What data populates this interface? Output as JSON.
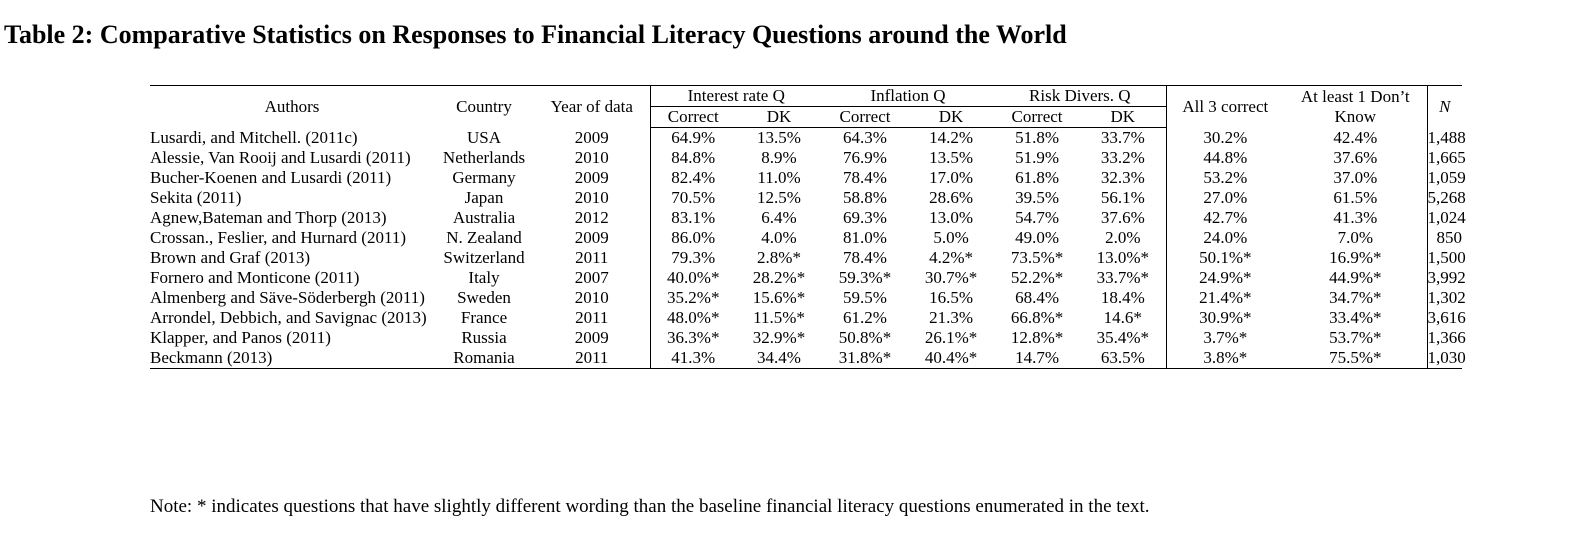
{
  "title": "Table 2: Comparative Statistics on Responses to Financial Literacy Questions around the World",
  "headers": {
    "authors": "Authors",
    "country": "Country",
    "year": "Year of data",
    "interest_group": "Interest rate Q",
    "inflation_group": "Inflation Q",
    "risk_group": "Risk Divers. Q",
    "all3": "All 3 correct",
    "atleast1_line1": "At least 1 Don’t",
    "atleast1_line2": "Know",
    "n": "N",
    "correct": "Correct",
    "dk": "DK"
  },
  "rows": [
    {
      "author": "Lusardi, and Mitchell. (2011c)",
      "country": "USA",
      "year": "2009",
      "ir_c": "64.9%",
      "ir_dk": "13.5%",
      "inf_c": "64.3%",
      "inf_dk": "14.2%",
      "risk_c": "51.8%",
      "risk_dk": "33.7%",
      "all3": "30.2%",
      "dk1": "42.4%",
      "n": "1,488"
    },
    {
      "author": "Alessie, Van Rooij and Lusardi (2011)",
      "country": "Netherlands",
      "year": "2010",
      "ir_c": "84.8%",
      "ir_dk": "8.9%",
      "inf_c": "76.9%",
      "inf_dk": "13.5%",
      "risk_c": "51.9%",
      "risk_dk": "33.2%",
      "all3": "44.8%",
      "dk1": "37.6%",
      "n": "1,665"
    },
    {
      "author": "Bucher-Koenen and Lusardi (2011)",
      "country": "Germany",
      "year": "2009",
      "ir_c": "82.4%",
      "ir_dk": "11.0%",
      "inf_c": "78.4%",
      "inf_dk": "17.0%",
      "risk_c": "61.8%",
      "risk_dk": "32.3%",
      "all3": "53.2%",
      "dk1": "37.0%",
      "n": "1,059"
    },
    {
      "author": "Sekita (2011)",
      "country": "Japan",
      "year": "2010",
      "ir_c": "70.5%",
      "ir_dk": "12.5%",
      "inf_c": "58.8%",
      "inf_dk": "28.6%",
      "risk_c": "39.5%",
      "risk_dk": "56.1%",
      "all3": "27.0%",
      "dk1": "61.5%",
      "n": "5,268"
    },
    {
      "author": "Agnew,Bateman and Thorp (2013)",
      "country": "Australia",
      "year": "2012",
      "ir_c": "83.1%",
      "ir_dk": "6.4%",
      "inf_c": "69.3%",
      "inf_dk": "13.0%",
      "risk_c": "54.7%",
      "risk_dk": "37.6%",
      "all3": "42.7%",
      "dk1": "41.3%",
      "n": "1,024"
    },
    {
      "author": "Crossan.,  Feslier, and Hurnard (2011)",
      "country": "N. Zealand",
      "year": "2009",
      "ir_c": "86.0%",
      "ir_dk": "4.0%",
      "inf_c": "81.0%",
      "inf_dk": "5.0%",
      "risk_c": "49.0%",
      "risk_dk": "2.0%",
      "all3": "24.0%",
      "dk1": "7.0%",
      "n": "850"
    },
    {
      "author": "Brown and Graf (2013)",
      "country": "Switzerland",
      "year": "2011",
      "ir_c": "79.3%",
      "ir_dk": "2.8%*",
      "inf_c": "78.4%",
      "inf_dk": "4.2%*",
      "risk_c": "73.5%*",
      "risk_dk": "13.0%*",
      "all3": "50.1%*",
      "dk1": "16.9%*",
      "n": "1,500"
    },
    {
      "author": "Fornero and Monticone (2011)",
      "country": "Italy",
      "year": "2007",
      "ir_c": "40.0%*",
      "ir_dk": "28.2%*",
      "inf_c": "59.3%*",
      "inf_dk": "30.7%*",
      "risk_c": "52.2%*",
      "risk_dk": "33.7%*",
      "all3": "24.9%*",
      "dk1": "44.9%*",
      "n": "3,992"
    },
    {
      "author": "Almenberg and Säve-Söderbergh (2011)",
      "country": "Sweden",
      "year": "2010",
      "ir_c": "35.2%*",
      "ir_dk": "15.6%*",
      "inf_c": "59.5%",
      "inf_dk": "16.5%",
      "risk_c": "68.4%",
      "risk_dk": "18.4%",
      "all3": "21.4%*",
      "dk1": "34.7%*",
      "n": "1,302"
    },
    {
      "author": "Arrondel, Debbich, and Savignac (2013)",
      "country": "France",
      "year": "2011",
      "ir_c": "48.0%*",
      "ir_dk": "11.5%*",
      "inf_c": "61.2%",
      "inf_dk": "21.3%",
      "risk_c": "66.8%*",
      "risk_dk": "14.6*",
      "all3": "30.9%*",
      "dk1": "33.4%*",
      "n": "3,616"
    },
    {
      "author": "Klapper, and Panos (2011)",
      "country": "Russia",
      "year": "2009",
      "ir_c": "36.3%*",
      "ir_dk": "32.9%*",
      "inf_c": "50.8%*",
      "inf_dk": "26.1%*",
      "risk_c": "12.8%*",
      "risk_dk": "35.4%*",
      "all3": "3.7%*",
      "dk1": "53.7%*",
      "n": "1,366"
    },
    {
      "author": "Beckmann (2013)",
      "country": "Romania",
      "year": "2011",
      "ir_c": "41.3%",
      "ir_dk": "34.4%",
      "inf_c": "31.8%*",
      "inf_dk": "40.4%*",
      "risk_c": "14.7%",
      "risk_dk": "63.5%",
      "all3": "3.8%*",
      "dk1": "75.5%*",
      "n": "1,030"
    }
  ],
  "note": "Note: * indicates questions that have slightly different wording than the baseline financial literacy questions enumerated in the text."
}
